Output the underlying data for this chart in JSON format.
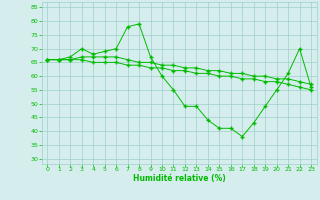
{
  "x": [
    0,
    1,
    2,
    3,
    4,
    5,
    6,
    7,
    8,
    9,
    10,
    11,
    12,
    13,
    14,
    15,
    16,
    17,
    18,
    19,
    20,
    21,
    22,
    23
  ],
  "line1": [
    66,
    66,
    67,
    70,
    68,
    69,
    70,
    78,
    79,
    67,
    60,
    55,
    49,
    49,
    44,
    41,
    41,
    38,
    43,
    49,
    55,
    61,
    70,
    56
  ],
  "line2": [
    66,
    66,
    66,
    67,
    67,
    67,
    67,
    66,
    65,
    65,
    64,
    64,
    63,
    63,
    62,
    62,
    61,
    61,
    60,
    60,
    59,
    59,
    58,
    57
  ],
  "line3": [
    66,
    66,
    66,
    66,
    65,
    65,
    65,
    64,
    64,
    63,
    63,
    62,
    62,
    61,
    61,
    60,
    60,
    59,
    59,
    58,
    58,
    57,
    56,
    55
  ],
  "line_color": "#00bb00",
  "bg_color": "#d5eeed",
  "grid_color": "#9ecfca",
  "xlabel": "Humidité relative (%)",
  "ylim": [
    28,
    87
  ],
  "xlim": [
    -0.5,
    23.5
  ],
  "yticks": [
    30,
    35,
    40,
    45,
    50,
    55,
    60,
    65,
    70,
    75,
    80,
    85
  ],
  "xticks": [
    0,
    1,
    2,
    3,
    4,
    5,
    6,
    7,
    8,
    9,
    10,
    11,
    12,
    13,
    14,
    15,
    16,
    17,
    18,
    19,
    20,
    21,
    22,
    23
  ]
}
